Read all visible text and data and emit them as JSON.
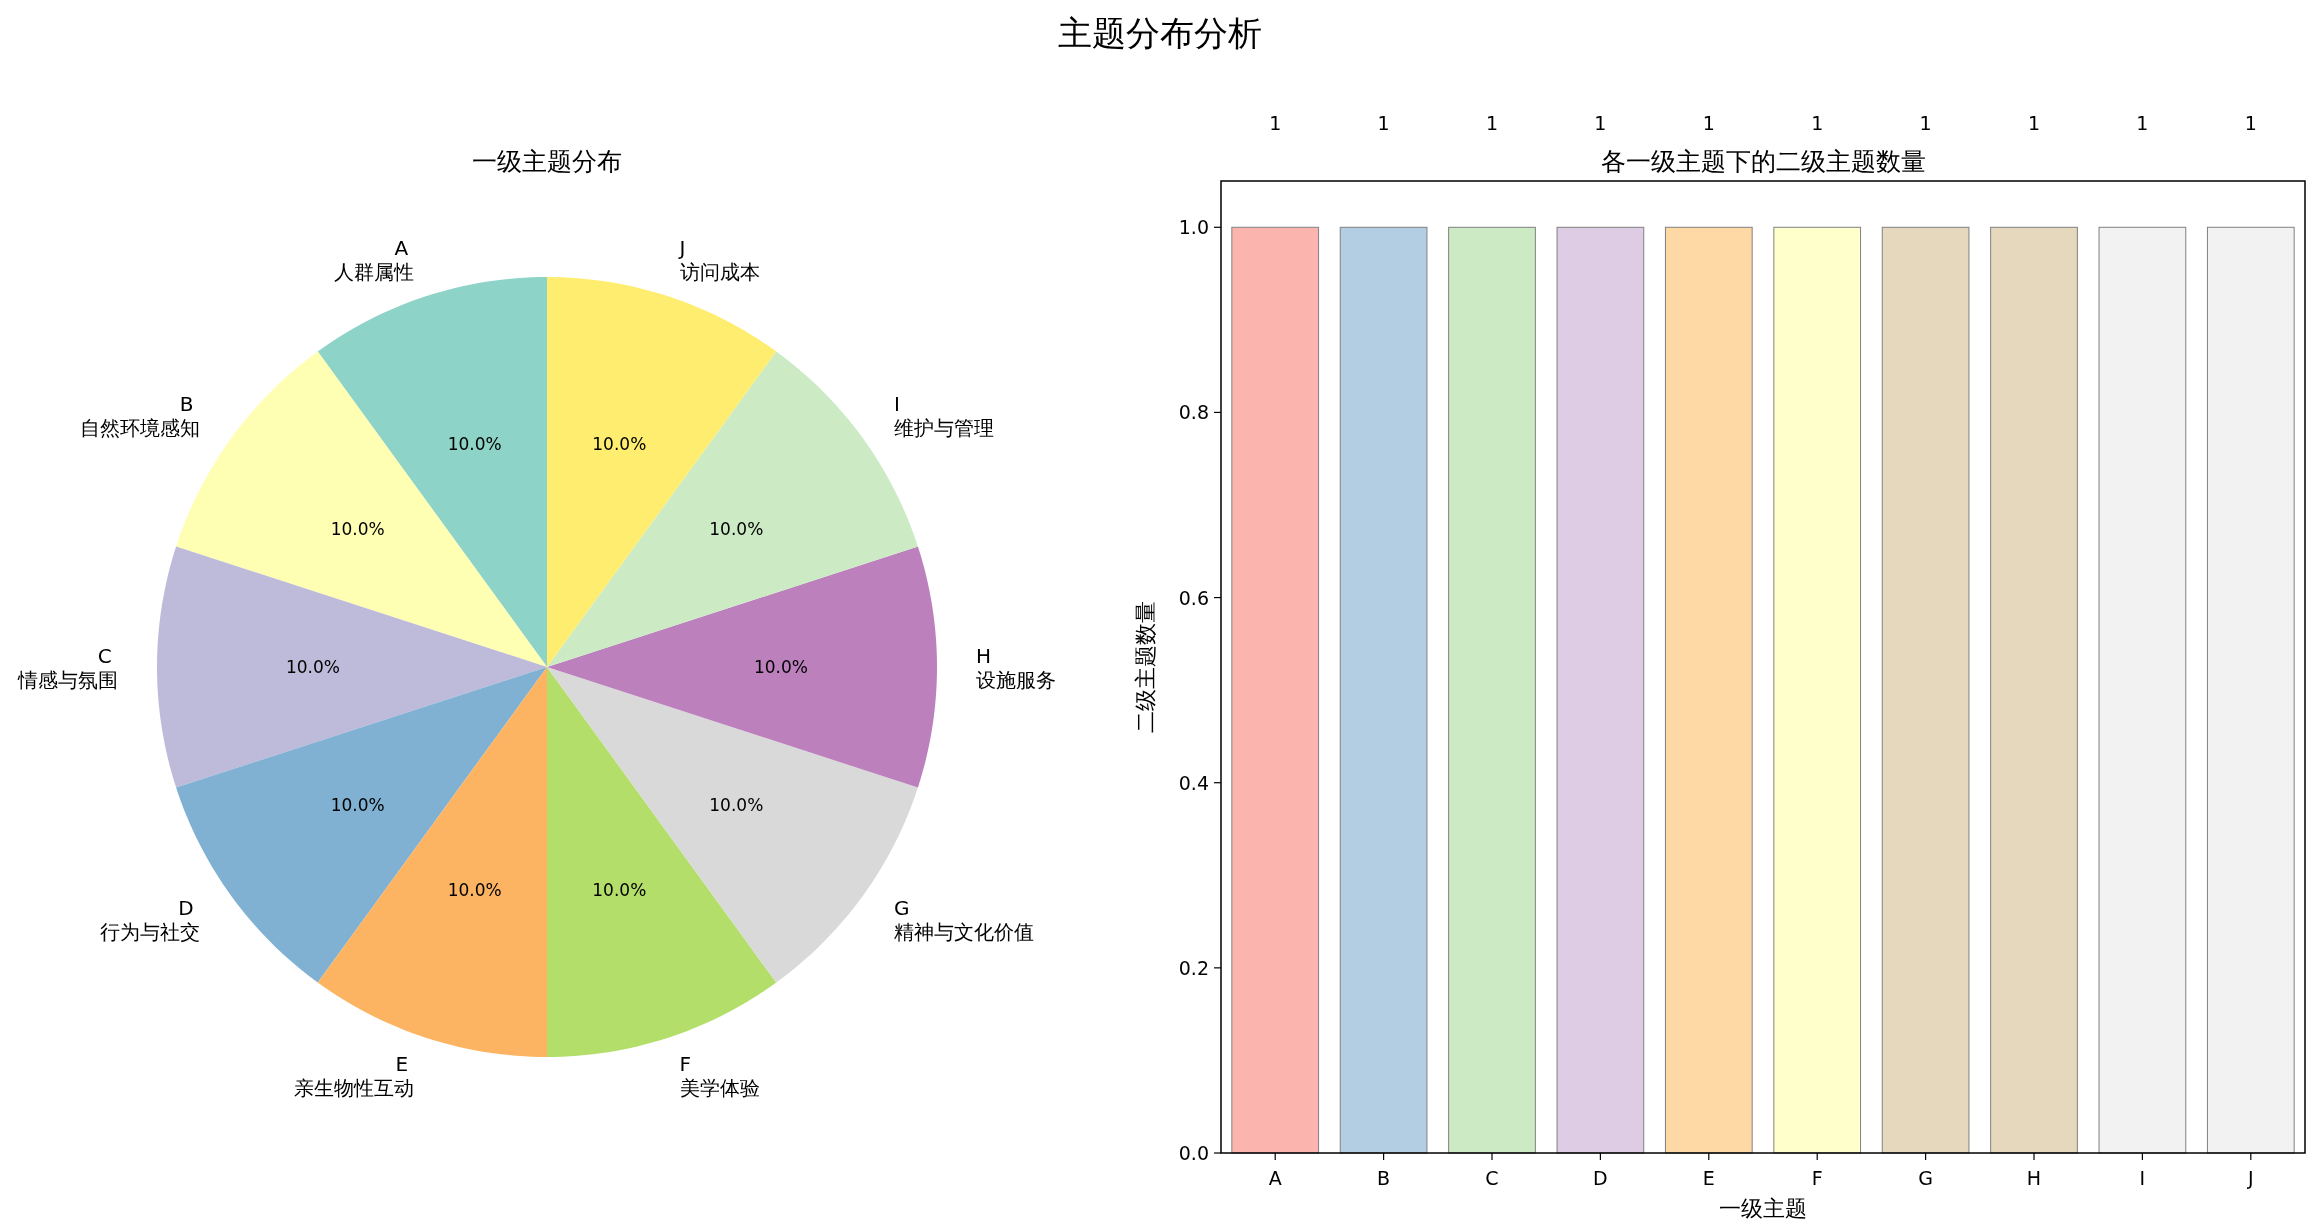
{
  "chart_data": [
    {
      "type": "pie",
      "title": "一级主题分布",
      "annotations": [
        "主题分布分析"
      ],
      "categories": [
        "A\n人群属性",
        "B\n自然环境感知",
        "C\n情感与氛围",
        "D\n行为与社交",
        "E\n亲生物性互动",
        "F\n美学体验",
        "G\n精神与文化价值",
        "H\n设施服务",
        "I\n维护与管理",
        "J\n访问成本"
      ],
      "values": [
        10,
        10,
        10,
        10,
        10,
        10,
        10,
        10,
        10,
        10
      ],
      "value_labels": [
        "10.0%",
        "10.0%",
        "10.0%",
        "10.0%",
        "10.0%",
        "10.0%",
        "10.0%",
        "10.0%",
        "10.0%",
        "10.0%"
      ],
      "colors": [
        "#8dd3c7",
        "#ffffb3",
        "#bebada",
        "#80b1d3",
        "#fdb462",
        "#b3de69",
        "#d9d9d9",
        "#bc80bd",
        "#ccebc5",
        "#ffed6f"
      ]
    },
    {
      "type": "bar",
      "title": "各一级主题下的二级主题数量",
      "xlabel": "一级主题",
      "ylabel": "二级主题数量",
      "categories": [
        "A",
        "B",
        "C",
        "D",
        "E",
        "F",
        "G",
        "H",
        "I",
        "J"
      ],
      "values": [
        1,
        1,
        1,
        1,
        1,
        1,
        1,
        1,
        1,
        1
      ],
      "colors": [
        "#fbb4ae",
        "#b3cde3",
        "#ccebc5",
        "#decbe4",
        "#fed9a6",
        "#ffffcc",
        "#e5d8bd",
        "#e5d8bd",
        "#f2f2f2",
        "#f2f2f2"
      ],
      "ylim": [
        0,
        1.05
      ],
      "yticks": [
        {
          "value": 0,
          "label": "0.0"
        },
        {
          "value": 0.2,
          "label": "0.2"
        },
        {
          "value": 0.4,
          "label": "0.4"
        },
        {
          "value": 0.6,
          "label": "0.6"
        },
        {
          "value": 0.8,
          "label": "0.8"
        },
        {
          "value": 1,
          "label": "1.0"
        }
      ],
      "data_labels": true
    }
  ]
}
